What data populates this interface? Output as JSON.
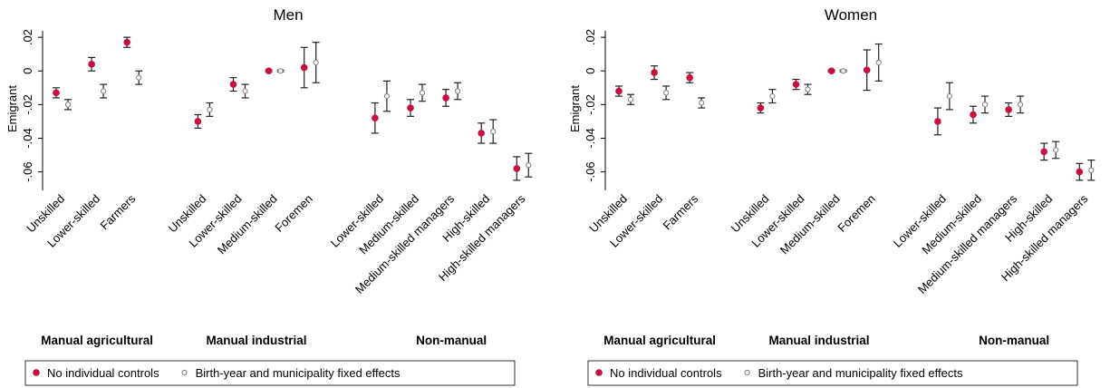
{
  "chart_data": [
    {
      "type": "dot-errorbar",
      "title": "Men",
      "y_label": "Emigrant",
      "categories": [
        "Unskilled",
        "Lower-skilled",
        "Farmers",
        null,
        "Unskilled",
        "Lower-skilled",
        "Medium-skilled",
        "Foremen",
        null,
        "Lower-skilled",
        "Medium-skilled",
        "Medium-skilled managers",
        "High-skilled",
        "High-skilled managers"
      ],
      "group_labels": [
        "Manual agricultural",
        "Manual industrial",
        "Non-manual"
      ],
      "ylim": [
        -0.071,
        0.026
      ],
      "yticks": [
        {
          "value": 0.02,
          "label": ".02"
        },
        0,
        {
          "value": -0.02,
          "label": "-.02"
        },
        {
          "value": -0.04,
          "label": "-.04"
        },
        {
          "value": -0.06,
          "label": "-.06"
        }
      ],
      "legend": "bottom",
      "series": [
        {
          "name": "No individual controls",
          "color": "#c8103e",
          "marker": "filled",
          "values": [
            -0.013,
            0.004,
            0.017,
            null,
            -0.03,
            -0.008,
            0,
            0.002,
            null,
            -0.028,
            -0.022,
            -0.016,
            -0.037,
            -0.058
          ],
          "errors": [
            0.003,
            0.004,
            0.003,
            null,
            0.004,
            0.004,
            0.0005,
            0.012,
            null,
            0.009,
            0.005,
            0.005,
            0.006,
            0.007
          ]
        },
        {
          "name": "Birth-year and municipality fixed effects",
          "color": "#7f7f7f",
          "marker": "hollow",
          "values": [
            -0.02,
            -0.012,
            -0.004,
            null,
            -0.023,
            -0.012,
            0,
            0.005,
            null,
            -0.015,
            -0.013,
            -0.012,
            -0.036,
            -0.056
          ],
          "errors": [
            0.003,
            0.004,
            0.004,
            null,
            0.004,
            0.004,
            0.0005,
            0.012,
            null,
            0.009,
            0.005,
            0.005,
            0.007,
            0.007
          ]
        }
      ]
    },
    {
      "type": "dot-errorbar",
      "title": "Women",
      "y_label": "Emigrant",
      "categories": [
        "Unskilled",
        "Lower-skilled",
        "Farmers",
        null,
        "Unskilled",
        "Lower-skilled",
        "Medium-skilled",
        "Foremen",
        null,
        "Lower-skilled",
        "Medium-skilled",
        "Medium-skilled managers",
        "High-skilled",
        "High-skilled managers"
      ],
      "group_labels": [
        "Manual agricultural",
        "Manual industrial",
        "Non-manual"
      ],
      "ylim": [
        -0.071,
        0.026
      ],
      "yticks": [
        {
          "value": 0.02,
          "label": ".02"
        },
        0,
        {
          "value": -0.02,
          "label": "-.02"
        },
        {
          "value": -0.04,
          "label": "-.04"
        },
        {
          "value": -0.06,
          "label": "-.06"
        }
      ],
      "legend": "bottom",
      "series": [
        {
          "name": "No individual controls",
          "color": "#c8103e",
          "marker": "filled",
          "values": [
            -0.012,
            -0.001,
            -0.004,
            null,
            -0.022,
            -0.008,
            0,
            0.0005,
            null,
            -0.03,
            -0.026,
            -0.023,
            -0.048,
            -0.06
          ],
          "errors": [
            0.003,
            0.004,
            0.003,
            null,
            0.003,
            0.003,
            0.0005,
            0.012,
            null,
            0.008,
            0.005,
            0.004,
            0.005,
            0.005
          ]
        },
        {
          "name": "Birth-year and municipality fixed effects",
          "color": "#7f7f7f",
          "marker": "hollow",
          "values": [
            -0.017,
            -0.013,
            -0.019,
            null,
            -0.015,
            -0.011,
            0,
            0.005,
            null,
            -0.015,
            -0.02,
            -0.02,
            -0.047,
            -0.059
          ],
          "errors": [
            0.003,
            0.004,
            0.003,
            null,
            0.004,
            0.003,
            0.0005,
            0.011,
            null,
            0.008,
            0.005,
            0.005,
            0.005,
            0.006
          ]
        }
      ]
    }
  ]
}
